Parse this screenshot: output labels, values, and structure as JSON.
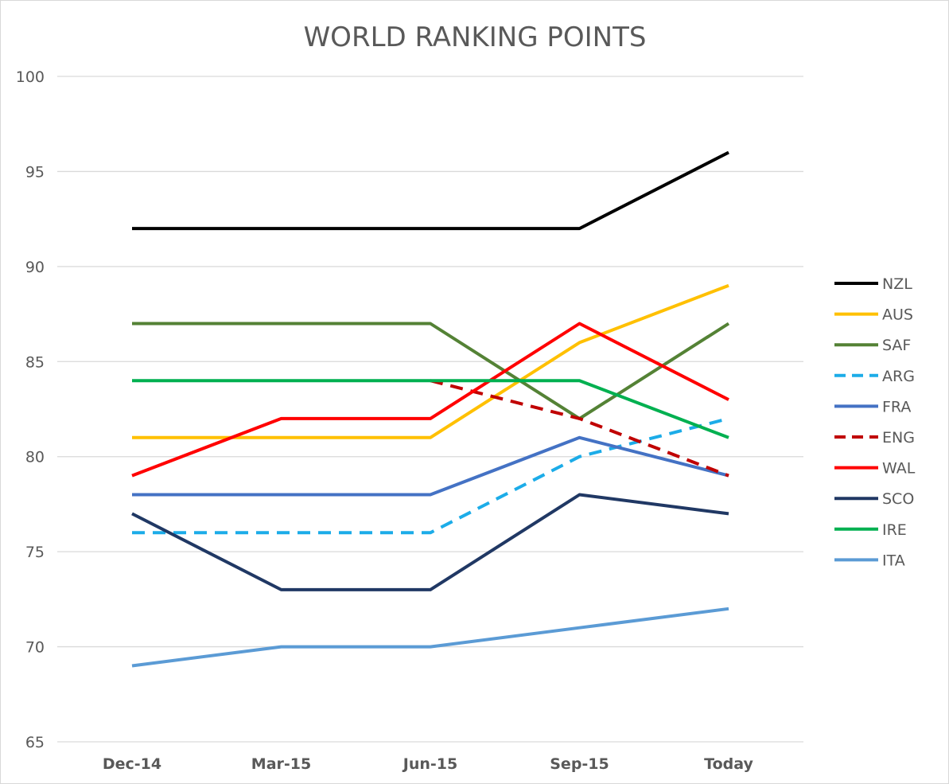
{
  "chart_data": {
    "type": "line",
    "title": "WORLD RANKING POINTS",
    "xlabel": "",
    "ylabel": "",
    "categories": [
      "Dec-14",
      "Mar-15",
      "Jun-15",
      "Sep-15",
      "Today"
    ],
    "yticks": [
      65,
      70,
      75,
      80,
      85,
      90,
      95,
      100
    ],
    "ylim": [
      65,
      100
    ],
    "grid": true,
    "legend_position": "right",
    "series": [
      {
        "name": "NZL",
        "color": "#000000",
        "dashed": false,
        "values": [
          92,
          92,
          92,
          92,
          96
        ]
      },
      {
        "name": "AUS",
        "color": "#ffc000",
        "dashed": false,
        "values": [
          81,
          81,
          81,
          86,
          89
        ]
      },
      {
        "name": "SAF",
        "color": "#548235",
        "dashed": false,
        "values": [
          87,
          87,
          87,
          82,
          87
        ]
      },
      {
        "name": "ARG",
        "color": "#1cace8",
        "dashed": true,
        "values": [
          76,
          76,
          76,
          80,
          82
        ]
      },
      {
        "name": "FRA",
        "color": "#4472c4",
        "dashed": false,
        "values": [
          78,
          78,
          78,
          81,
          79
        ]
      },
      {
        "name": "ENG",
        "color": "#c00000",
        "dashed": true,
        "values": [
          null,
          null,
          84,
          82,
          79
        ]
      },
      {
        "name": "WAL",
        "color": "#ff0000",
        "dashed": false,
        "values": [
          79,
          82,
          82,
          87,
          83
        ]
      },
      {
        "name": "SCO",
        "color": "#203864",
        "dashed": false,
        "values": [
          77,
          73,
          73,
          78,
          77
        ]
      },
      {
        "name": "IRE",
        "color": "#00b050",
        "dashed": false,
        "values": [
          84,
          84,
          84,
          84,
          81
        ]
      },
      {
        "name": "ITA",
        "color": "#5b9bd5",
        "dashed": false,
        "values": [
          69,
          70,
          70,
          71,
          72
        ]
      }
    ]
  }
}
